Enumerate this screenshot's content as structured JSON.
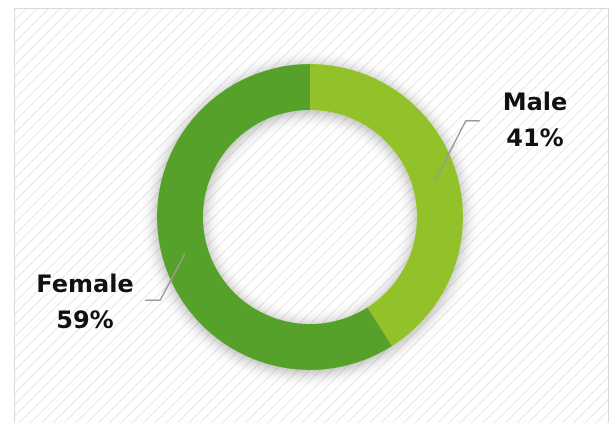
{
  "chart_data": {
    "type": "donut",
    "categories": [
      "Male",
      "Female"
    ],
    "values": [
      41,
      59
    ],
    "value_labels": [
      "41%",
      "59%"
    ],
    "colors": [
      "#93c12a",
      "#56a12a"
    ]
  }
}
